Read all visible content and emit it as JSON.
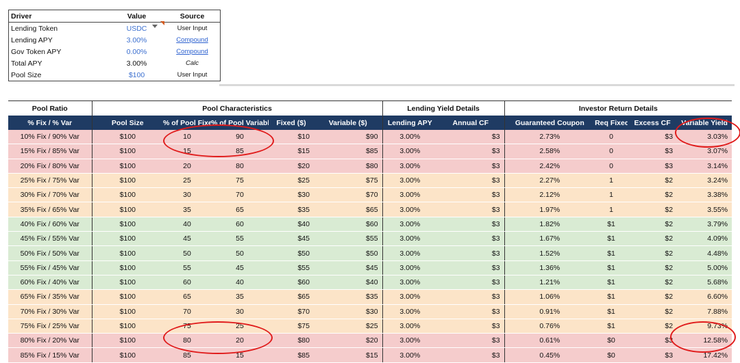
{
  "drivers": {
    "headers": [
      "Driver",
      "Value",
      "Source"
    ],
    "rows": [
      {
        "driver": "Lending Token",
        "value": "USDC",
        "source": "User Input"
      },
      {
        "driver": "Lending APY",
        "value": "3.00%",
        "source": "Compound"
      },
      {
        "driver": "Gov Token APY",
        "value": "0.00%",
        "source": "Compound"
      },
      {
        "driver": "Total APY",
        "value": "3.00%",
        "source": "Calc"
      },
      {
        "driver": "Pool Size",
        "value": "$100",
        "source": "User Input"
      }
    ]
  },
  "main": {
    "groups": [
      "Pool Ratio",
      "Pool Characteristics",
      "Lending Yield Details",
      "Investor Return Details"
    ],
    "columns": [
      "% Fix / % Var",
      "Pool Size",
      "% of Pool Fixed",
      "% of Pool Variable",
      "Fixed ($)",
      "Variable ($)",
      "Lending APY",
      "Annual CF",
      "Guaranteed Coupon",
      "Req Fixed CF",
      "Excess CF",
      "Variable Yield"
    ],
    "rows": [
      [
        "10% Fix / 90% Var",
        "$100",
        "10",
        "90",
        "$10",
        "$90",
        "3.00%",
        "$3",
        "2.73%",
        "0",
        "$3",
        "3.03%"
      ],
      [
        "15% Fix / 85% Var",
        "$100",
        "15",
        "85",
        "$15",
        "$85",
        "3.00%",
        "$3",
        "2.58%",
        "0",
        "$3",
        "3.07%"
      ],
      [
        "20% Fix / 80% Var",
        "$100",
        "20",
        "80",
        "$20",
        "$80",
        "3.00%",
        "$3",
        "2.42%",
        "0",
        "$3",
        "3.14%"
      ],
      [
        "25% Fix / 75% Var",
        "$100",
        "25",
        "75",
        "$25",
        "$75",
        "3.00%",
        "$3",
        "2.27%",
        "1",
        "$2",
        "3.24%"
      ],
      [
        "30% Fix / 70% Var",
        "$100",
        "30",
        "70",
        "$30",
        "$70",
        "3.00%",
        "$3",
        "2.12%",
        "1",
        "$2",
        "3.38%"
      ],
      [
        "35% Fix / 65% Var",
        "$100",
        "35",
        "65",
        "$35",
        "$65",
        "3.00%",
        "$3",
        "1.97%",
        "1",
        "$2",
        "3.55%"
      ],
      [
        "40% Fix / 60% Var",
        "$100",
        "40",
        "60",
        "$40",
        "$60",
        "3.00%",
        "$3",
        "1.82%",
        "$1",
        "$2",
        "3.79%"
      ],
      [
        "45% Fix / 55% Var",
        "$100",
        "45",
        "55",
        "$45",
        "$55",
        "3.00%",
        "$3",
        "1.67%",
        "$1",
        "$2",
        "4.09%"
      ],
      [
        "50% Fix / 50% Var",
        "$100",
        "50",
        "50",
        "$50",
        "$50",
        "3.00%",
        "$3",
        "1.52%",
        "$1",
        "$2",
        "4.48%"
      ],
      [
        "55% Fix / 45% Var",
        "$100",
        "55",
        "45",
        "$55",
        "$45",
        "3.00%",
        "$3",
        "1.36%",
        "$1",
        "$2",
        "5.00%"
      ],
      [
        "60% Fix / 40% Var",
        "$100",
        "60",
        "40",
        "$60",
        "$40",
        "3.00%",
        "$3",
        "1.21%",
        "$1",
        "$2",
        "5.68%"
      ],
      [
        "65% Fix / 35% Var",
        "$100",
        "65",
        "35",
        "$65",
        "$35",
        "3.00%",
        "$3",
        "1.06%",
        "$1",
        "$2",
        "6.60%"
      ],
      [
        "70% Fix / 30% Var",
        "$100",
        "70",
        "30",
        "$70",
        "$30",
        "3.00%",
        "$3",
        "0.91%",
        "$1",
        "$2",
        "7.88%"
      ],
      [
        "75% Fix / 25% Var",
        "$100",
        "75",
        "25",
        "$75",
        "$25",
        "3.00%",
        "$3",
        "0.76%",
        "$1",
        "$2",
        "9.73%"
      ],
      [
        "80% Fix / 20% Var",
        "$100",
        "80",
        "20",
        "$80",
        "$20",
        "3.00%",
        "$3",
        "0.61%",
        "$0",
        "$3",
        "12.58%"
      ],
      [
        "85% Fix / 15% Var",
        "$100",
        "85",
        "15",
        "$85",
        "$15",
        "3.00%",
        "$3",
        "0.45%",
        "$0",
        "$3",
        "17.42%"
      ]
    ],
    "row_bands": [
      "red",
      "red",
      "red",
      "orange",
      "orange",
      "orange",
      "green",
      "green",
      "green",
      "green",
      "green",
      "orange",
      "orange",
      "orange",
      "red",
      "red"
    ]
  },
  "colors": {
    "header_bg": "#1f3b63",
    "band_red": "#f5cccc",
    "band_orange": "#fce4c8",
    "band_green": "#d9ebd3",
    "annotation": "#e01b1b",
    "value_blue": "#3b6fcf"
  },
  "icons": [
    "dropdown-arrow-icon"
  ]
}
